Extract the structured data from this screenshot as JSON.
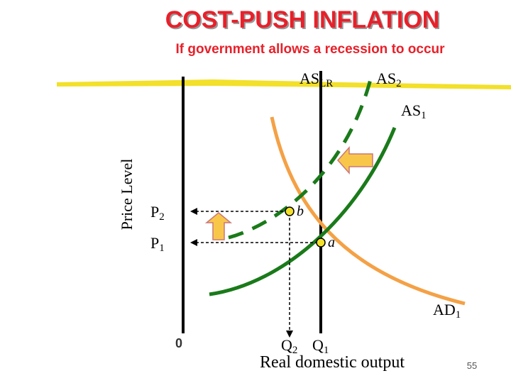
{
  "header": {
    "title": "COST-PUSH INFLATION",
    "subtitle": "If government allows a recession to occur"
  },
  "curves": {
    "aslr": {
      "base": "AS",
      "sub": "LR"
    },
    "as2": {
      "base": "AS",
      "sub": "2"
    },
    "as1": {
      "base": "AS",
      "sub": "1"
    },
    "ad1": {
      "base": "AD",
      "sub": "1"
    }
  },
  "axes": {
    "y_label": "Price Level",
    "x_label": "Real domestic output",
    "origin": "0"
  },
  "levels": {
    "p2": {
      "base": "P",
      "sub": "2"
    },
    "p1": {
      "base": "P",
      "sub": "1"
    },
    "q2": {
      "base": "Q",
      "sub": "2"
    },
    "q1": {
      "base": "Q",
      "sub": "1"
    }
  },
  "points": {
    "b": "b",
    "a": "a"
  },
  "page_number": "55"
}
